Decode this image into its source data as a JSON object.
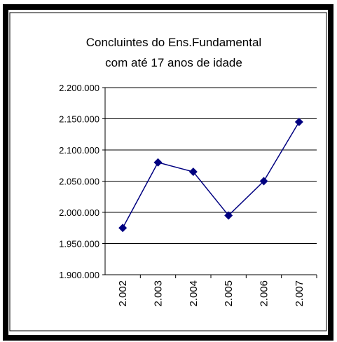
{
  "chart_data": {
    "type": "line",
    "title": [
      "Concluintes do Ens.Fundamental",
      "com até 17 anos de idade"
    ],
    "categories": [
      "2.002",
      "2.003",
      "2.004",
      "2.005",
      "2.006",
      "2.007"
    ],
    "series": [
      {
        "color": "#000080",
        "values": [
          1975000,
          2080000,
          2065000,
          1995000,
          2050000,
          2145000
        ]
      }
    ],
    "ylim": [
      1900000,
      2200000
    ],
    "yticks": [
      {
        "value": 1900000,
        "label": "1.900.000"
      },
      {
        "value": 1950000,
        "label": "1.950.000"
      },
      {
        "value": 2000000,
        "label": "2.000.000"
      },
      {
        "value": 2050000,
        "label": "2.050.000"
      },
      {
        "value": 2100000,
        "label": "2.100.000"
      },
      {
        "value": 2150000,
        "label": "2.150.000"
      },
      {
        "value": 2200000,
        "label": "2.200.000"
      }
    ],
    "grid": true
  }
}
